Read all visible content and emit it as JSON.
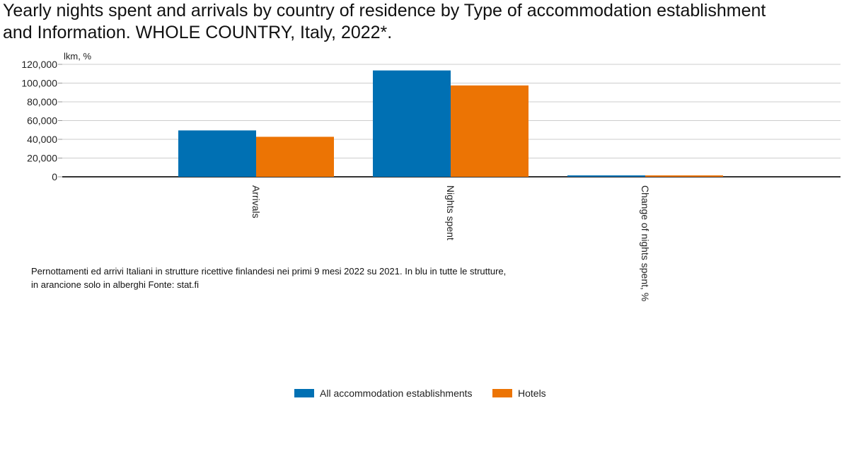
{
  "chart_data": {
    "type": "bar",
    "title": "Yearly nights spent and arrivals by country of residence by Type of accommodation establishment\nand Information. WHOLE COUNTRY, Italy, 2022*.",
    "ylabel": "lkm, %",
    "xlabel": "",
    "categories": [
      "Arrivals",
      "Nights spent",
      "Change of nights spent, %"
    ],
    "series": [
      {
        "name": "All accommodation establishments",
        "color": "#0070b3",
        "values": [
          49500,
          113500,
          1200
        ]
      },
      {
        "name": "Hotels",
        "color": "#ec7404",
        "values": [
          42700,
          97500,
          1000
        ]
      }
    ],
    "ylim": [
      0,
      120000
    ],
    "yticks": [
      "0",
      "20,000",
      "40,000",
      "60,000",
      "80,000",
      "100,000",
      "120,000"
    ],
    "ytick_values": [
      0,
      20000,
      40000,
      60000,
      80000,
      100000,
      120000
    ],
    "grid": true,
    "legend_position": "bottom"
  },
  "caption": " Pernottamenti ed arrivi Italiani in strutture ricettive finlandesi nei primi 9 mesi 2022 su 2021. In blu in tutte le strutture,\nin arancione solo in alberghi Fonte: stat.fi"
}
